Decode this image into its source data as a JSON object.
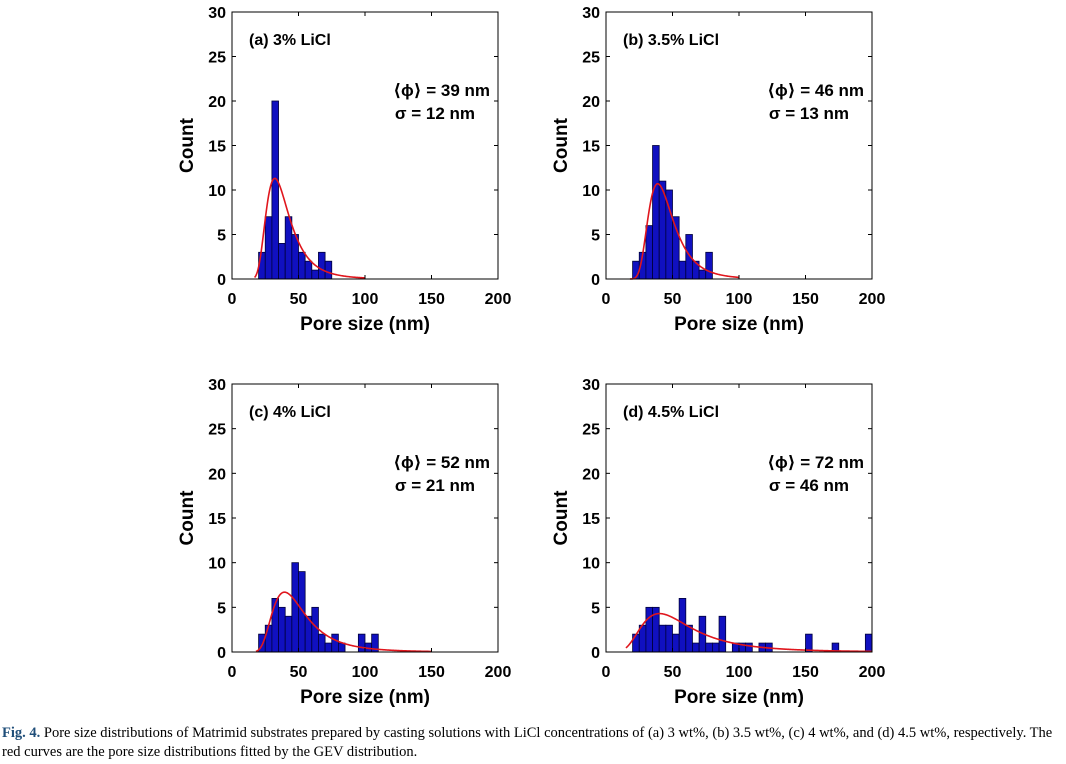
{
  "colors": {
    "bar_fill": "#1010c0",
    "bar_edge": "#00003a",
    "fit_curve": "#e0161d",
    "axis": "#000000"
  },
  "chart_data": [
    {
      "type": "bar",
      "panel": "(a) 3% LiCl",
      "xlabel": "Pore size (nm)",
      "ylabel": "Count",
      "xlim": [
        0,
        200
      ],
      "ylim": [
        0,
        30
      ],
      "xticks": [
        "0",
        "50",
        "100",
        "150",
        "200"
      ],
      "yticks": [
        "0",
        "5",
        "10",
        "15",
        "20",
        "25",
        "30"
      ],
      "stats": {
        "mean_label": "⟨ϕ⟩ = 39 nm",
        "sigma_label": "σ = 12 nm"
      },
      "bin_width": 5,
      "bins": [
        [
          20,
          3
        ],
        [
          25,
          7
        ],
        [
          30,
          20
        ],
        [
          35,
          4
        ],
        [
          40,
          7
        ],
        [
          45,
          5
        ],
        [
          50,
          3
        ],
        [
          55,
          2
        ],
        [
          60,
          1
        ],
        [
          65,
          3
        ],
        [
          70,
          2
        ]
      ],
      "fit": {
        "name": "GEV fit",
        "mu": 33.5,
        "sigma": 9.5,
        "xi": 0.15,
        "peak_count": 11.3,
        "x_start": 17,
        "x_end": 100
      },
      "grid": false
    },
    {
      "type": "bar",
      "panel": "(b) 3.5% LiCl",
      "xlabel": "Pore size (nm)",
      "ylabel": "Count",
      "xlim": [
        0,
        200
      ],
      "ylim": [
        0,
        30
      ],
      "xticks": [
        "0",
        "50",
        "100",
        "150",
        "200"
      ],
      "yticks": [
        "0",
        "5",
        "10",
        "15",
        "20",
        "25",
        "30"
      ],
      "stats": {
        "mean_label": "⟨ϕ⟩ = 46 nm",
        "sigma_label": "σ = 13 nm"
      },
      "bin_width": 5,
      "bins": [
        [
          20,
          2
        ],
        [
          25,
          3
        ],
        [
          30,
          6
        ],
        [
          35,
          15
        ],
        [
          40,
          11
        ],
        [
          45,
          10
        ],
        [
          50,
          7
        ],
        [
          55,
          2
        ],
        [
          60,
          5
        ],
        [
          65,
          2
        ],
        [
          70,
          1
        ],
        [
          75,
          3
        ]
      ],
      "fit": {
        "name": "GEV fit",
        "mu": 40,
        "sigma": 10,
        "xi": 0.12,
        "peak_count": 10.7,
        "x_start": 18,
        "x_end": 100
      },
      "grid": false
    },
    {
      "type": "bar",
      "panel": "(c) 4% LiCl",
      "xlabel": "Pore size (nm)",
      "ylabel": "Count",
      "xlim": [
        0,
        200
      ],
      "ylim": [
        0,
        30
      ],
      "xticks": [
        "0",
        "50",
        "100",
        "150",
        "200"
      ],
      "yticks": [
        "0",
        "5",
        "10",
        "15",
        "20",
        "25",
        "30"
      ],
      "stats": {
        "mean_label": "⟨ϕ⟩ = 52 nm",
        "sigma_label": "σ = 21 nm"
      },
      "bin_width": 5,
      "bins": [
        [
          20,
          2
        ],
        [
          25,
          3
        ],
        [
          30,
          6
        ],
        [
          35,
          5
        ],
        [
          40,
          4
        ],
        [
          45,
          10
        ],
        [
          50,
          9
        ],
        [
          55,
          4
        ],
        [
          60,
          5
        ],
        [
          65,
          2
        ],
        [
          70,
          1
        ],
        [
          75,
          2
        ],
        [
          80,
          1
        ],
        [
          95,
          2
        ],
        [
          100,
          1
        ],
        [
          105,
          2
        ]
      ],
      "fit": {
        "name": "GEV fit",
        "mu": 42,
        "sigma": 14,
        "xi": 0.2,
        "peak_count": 6.7,
        "x_start": 18,
        "x_end": 150
      },
      "grid": false
    },
    {
      "type": "bar",
      "panel": "(d) 4.5% LiCl",
      "xlabel": "Pore size (nm)",
      "ylabel": "Count",
      "xlim": [
        0,
        200
      ],
      "ylim": [
        0,
        30
      ],
      "xticks": [
        "0",
        "50",
        "100",
        "150",
        "200"
      ],
      "yticks": [
        "0",
        "5",
        "10",
        "15",
        "20",
        "25",
        "30"
      ],
      "stats": {
        "mean_label": "⟨ϕ⟩ = 72 nm",
        "sigma_label": "σ = 46 nm"
      },
      "bin_width": 5,
      "bins": [
        [
          20,
          2
        ],
        [
          25,
          3
        ],
        [
          30,
          5
        ],
        [
          35,
          5
        ],
        [
          40,
          3
        ],
        [
          45,
          3
        ],
        [
          50,
          2
        ],
        [
          55,
          6
        ],
        [
          60,
          3
        ],
        [
          65,
          1
        ],
        [
          70,
          4
        ],
        [
          75,
          1
        ],
        [
          80,
          1
        ],
        [
          85,
          4
        ],
        [
          95,
          1
        ],
        [
          100,
          1
        ],
        [
          105,
          1
        ],
        [
          115,
          1
        ],
        [
          120,
          1
        ],
        [
          150,
          2
        ],
        [
          170,
          1
        ],
        [
          195,
          2
        ]
      ],
      "fit": {
        "name": "GEV fit",
        "mu": 45,
        "sigma": 22,
        "xi": 0.25,
        "peak_count": 4.3,
        "x_start": 15,
        "x_end": 200
      },
      "grid": false
    }
  ],
  "caption": {
    "label": "Fig. 4.",
    "text": "Pore size distributions of Matrimid substrates prepared by casting solutions with LiCl concentrations of (a) 3 wt%, (b) 3.5 wt%, (c) 4 wt%, and (d) 4.5 wt%, respectively. The red curves are the pore size distributions fitted by the GEV distribution."
  }
}
